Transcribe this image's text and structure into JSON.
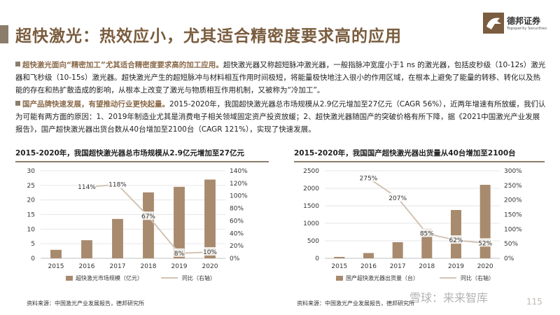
{
  "header": {
    "title": "超快激光：热效应小，尤其适合精密度要求高的应用",
    "logo_cn": "德邦证券",
    "logo_en": "Topsperity Securities",
    "accent_color": "#8b7d6b",
    "title_color": "#7a5c3e"
  },
  "paragraph1": {
    "lead": "超快激光面向“精密加工”尤其适合精密度要求高的加工应用。",
    "body": "超快激光器又称超短脉冲激光器，一般指脉冲宽度小于1 ns 的激光器，包括皮秒级（10-12s）激光器和飞秒级（10-15s）激光器。超快激光产生的超短脉冲与材料相互作用时间极短，将能量极快地注入很小的作用区域，在根本上避免了能量的转移、转化以及热能的存在和热扩散造成的影响，从根本上改变了激光与物质相互作用机制，又被称为“冷加工”。"
  },
  "paragraph2": {
    "lead": "国产品牌快速发展，有望推动行业更快起量。",
    "body": "2015-2020年，我国超快激光器总市场规模从2.9亿元增加至27亿元（CAGR 56%），近两年增速有所放缓，我们认为可能有两方面的原因：1、2019年制造业尤其是消费电子相关领域固定资产投资放缓；2、超快激光器随国产的突破价格有所下降，据《2021中国激光产业发展报告》，国产超快激光器出货台数从40台增加至2100台（CAGR 121%），实现了快速发展。"
  },
  "left": {
    "title": "2015-2020年，我国超快激光器总市场规模从2.9亿元增加至27亿元",
    "source": "资料来源：中国激光产业发展报告，德邦研究所"
  },
  "right": {
    "title": "2015-2020年，我国国产超快激光器出货量从40台增加至2100台",
    "source": "资料来源：中国激光产业发展报告，德邦研究所"
  },
  "watermark": "雪球：来来智库",
  "page_number": "115",
  "colors": {
    "bar": "#a88a6e",
    "line": "#d2c4b3",
    "grid": "#e6e6e6"
  },
  "chart_data": [
    {
      "type": "bar",
      "categories": [
        "2015",
        "2016",
        "2017",
        "2018",
        "2019",
        "2020"
      ],
      "series": [
        {
          "name": "超快激光市场规模（亿元）",
          "type": "bar",
          "axis": "left",
          "values": [
            2.9,
            6.2,
            13.5,
            22.6,
            24.5,
            27
          ]
        },
        {
          "name": "同比（右轴）",
          "type": "line",
          "axis": "right",
          "values": [
            null,
            1.14,
            1.18,
            0.67,
            0.08,
            0.1
          ],
          "labels": [
            "",
            "114%",
            "118%",
            "67%",
            "8%",
            "10%"
          ]
        }
      ],
      "ylim": [
        0,
        30
      ],
      "yticks": [
        "0",
        "5",
        "10",
        "15",
        "20",
        "25",
        "30"
      ],
      "y2lim": [
        0,
        1.4
      ],
      "y2ticks": [
        "0%",
        "20%",
        "40%",
        "60%",
        "80%",
        "100%",
        "120%",
        "140%"
      ],
      "legend_position": "bottom"
    },
    {
      "type": "bar",
      "categories": [
        "2015",
        "2016",
        "2017",
        "2018",
        "2019",
        "2020"
      ],
      "series": [
        {
          "name": "国产超快激光器出货量（台）",
          "type": "bar",
          "axis": "left",
          "values": [
            40,
            150,
            460,
            850,
            1380,
            2100
          ]
        },
        {
          "name": "同比（右轴）",
          "type": "line",
          "axis": "right",
          "values": [
            null,
            2.75,
            2.07,
            0.85,
            0.62,
            0.52
          ],
          "labels": [
            "",
            "275%",
            "207%",
            "85%",
            "62%",
            "52%"
          ]
        }
      ],
      "ylim": [
        0,
        2500
      ],
      "yticks": [
        "0",
        "500",
        "1000",
        "1500",
        "2000",
        "2500"
      ],
      "y2lim": [
        0,
        3.0
      ],
      "y2ticks": [
        "0%",
        "50%",
        "100%",
        "150%",
        "200%",
        "250%",
        "300%"
      ],
      "legend_position": "bottom"
    }
  ]
}
